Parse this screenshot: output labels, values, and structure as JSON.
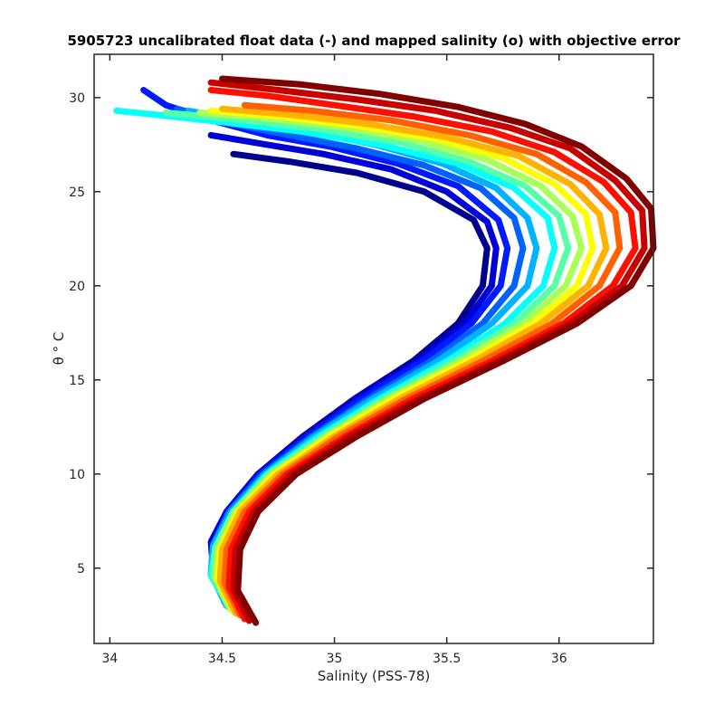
{
  "chart_data": {
    "type": "line",
    "title": "5905723 uncalibrated float data (-) and mapped salinity (o) with objective error",
    "xlabel": "Salinity (PSS-78)",
    "ylabel": "θ ° C",
    "xlim": [
      33.93,
      36.42
    ],
    "ylim": [
      1.0,
      32.3
    ],
    "xticks": [
      34,
      34.5,
      35,
      35.5,
      36
    ],
    "xtick_labels": [
      "34",
      "34.5",
      "35",
      "35.5",
      "36"
    ],
    "yticks": [
      5,
      10,
      15,
      20,
      25,
      30
    ],
    "ytick_labels": [
      "5",
      "10",
      "15",
      "20",
      "25",
      "30"
    ],
    "grid": false,
    "legend": "none",
    "colormap": "jet",
    "colormap_stops": [
      "#00008f",
      "#0000ff",
      "#0080ff",
      "#00ffff",
      "#80ff80",
      "#ffff00",
      "#ff8000",
      "#ff0000",
      "#800000"
    ],
    "series": [
      {
        "color_index": 0.0,
        "salinity": [
          34.52,
          34.47,
          34.46,
          34.52,
          34.66,
          34.86,
          35.09,
          35.35,
          35.55,
          35.66,
          35.68,
          35.62,
          35.4,
          35.1,
          34.8,
          34.55
        ],
        "theta": [
          3.3,
          4.8,
          6.5,
          8.0,
          10.0,
          12.0,
          14.0,
          16.0,
          18.0,
          20.0,
          22.0,
          23.5,
          25.0,
          26.0,
          26.6,
          27.0
        ]
      },
      {
        "color_index": 0.08,
        "salinity": [
          34.51,
          34.46,
          34.45,
          34.52,
          34.66,
          34.87,
          35.1,
          35.37,
          35.58,
          35.7,
          35.72,
          35.68,
          35.5,
          35.25,
          34.95,
          34.65,
          34.45
        ],
        "theta": [
          3.2,
          4.9,
          6.4,
          8.0,
          10.0,
          12.0,
          14.0,
          16.0,
          18.0,
          20.0,
          22.0,
          23.4,
          25.0,
          26.2,
          27.0,
          27.6,
          28.0
        ]
      },
      {
        "color_index": 0.15,
        "salinity": [
          34.52,
          34.46,
          34.46,
          34.53,
          34.67,
          34.88,
          35.12,
          35.39,
          35.61,
          35.74,
          35.77,
          35.73,
          35.55,
          35.28,
          34.98,
          34.7,
          34.45,
          34.25,
          34.15
        ],
        "theta": [
          3.1,
          4.8,
          6.3,
          8.0,
          10.0,
          12.0,
          14.0,
          16.0,
          18.0,
          20.0,
          22.0,
          23.5,
          25.3,
          26.5,
          27.4,
          28.0,
          28.8,
          29.6,
          30.4
        ]
      },
      {
        "color_index": 0.22,
        "salinity": [
          34.52,
          34.45,
          34.46,
          34.53,
          34.68,
          34.9,
          35.15,
          35.43,
          35.66,
          35.8,
          35.84,
          35.8,
          35.65,
          35.4,
          35.1,
          34.8,
          34.55,
          34.3
        ],
        "theta": [
          3.0,
          4.7,
          6.2,
          8.0,
          10.0,
          12.0,
          14.0,
          16.0,
          18.0,
          20.0,
          22.0,
          23.6,
          25.2,
          26.4,
          27.3,
          28.0,
          28.6,
          29.4
        ]
      },
      {
        "color_index": 0.3,
        "salinity": [
          34.52,
          34.45,
          34.46,
          34.54,
          34.69,
          34.91,
          35.17,
          35.46,
          35.7,
          35.86,
          35.9,
          35.86,
          35.72,
          35.48,
          35.18,
          34.88,
          34.6,
          34.35
        ],
        "theta": [
          3.0,
          4.7,
          6.2,
          8.0,
          10.0,
          12.0,
          14.0,
          16.0,
          18.0,
          20.0,
          22.0,
          23.6,
          25.2,
          26.5,
          27.5,
          28.2,
          28.8,
          29.3
        ]
      },
      {
        "color_index": 0.38,
        "salinity": [
          34.53,
          34.45,
          34.47,
          34.55,
          34.7,
          34.93,
          35.2,
          35.5,
          35.76,
          35.93,
          35.98,
          35.95,
          35.8,
          35.55,
          35.2,
          34.85,
          34.5,
          34.2,
          34.03
        ],
        "theta": [
          3.0,
          4.6,
          6.1,
          8.0,
          10.0,
          12.0,
          14.0,
          16.0,
          18.0,
          20.0,
          22.0,
          23.6,
          25.2,
          26.5,
          27.5,
          28.2,
          28.7,
          29.1,
          29.3
        ]
      },
      {
        "color_index": 0.46,
        "salinity": [
          34.53,
          34.46,
          34.47,
          34.55,
          34.71,
          34.95,
          35.22,
          35.53,
          35.8,
          35.98,
          36.04,
          36.0,
          35.85,
          35.6,
          35.3,
          34.95,
          34.6,
          34.25
        ],
        "theta": [
          2.9,
          4.6,
          6.1,
          8.0,
          10.0,
          12.0,
          14.0,
          16.0,
          18.0,
          20.0,
          22.0,
          23.7,
          25.3,
          26.6,
          27.6,
          28.3,
          28.8,
          29.2
        ]
      },
      {
        "color_index": 0.54,
        "salinity": [
          34.54,
          34.47,
          34.48,
          34.56,
          34.72,
          34.96,
          35.24,
          35.56,
          35.84,
          36.03,
          36.1,
          36.06,
          35.92,
          35.68,
          35.38,
          35.05,
          34.7,
          34.4
        ],
        "theta": [
          2.8,
          4.5,
          6.0,
          8.0,
          10.0,
          12.0,
          14.0,
          16.0,
          18.0,
          20.0,
          22.0,
          23.7,
          25.3,
          26.7,
          27.7,
          28.4,
          28.9,
          29.2
        ]
      },
      {
        "color_index": 0.62,
        "salinity": [
          34.55,
          34.48,
          34.49,
          34.57,
          34.73,
          34.98,
          35.26,
          35.59,
          35.88,
          36.08,
          36.15,
          36.12,
          35.98,
          35.75,
          35.45,
          35.1,
          34.75,
          34.45
        ],
        "theta": [
          2.7,
          4.4,
          6.0,
          8.0,
          10.0,
          12.0,
          14.0,
          16.0,
          18.0,
          20.0,
          22.0,
          23.8,
          25.4,
          26.8,
          27.8,
          28.5,
          29.0,
          29.3
        ]
      },
      {
        "color_index": 0.7,
        "salinity": [
          34.56,
          34.49,
          34.5,
          34.58,
          34.75,
          35.0,
          35.29,
          35.62,
          35.92,
          36.13,
          36.21,
          36.18,
          36.05,
          35.82,
          35.5,
          35.15,
          34.8,
          34.5
        ],
        "theta": [
          2.6,
          4.3,
          6.0,
          8.0,
          10.0,
          12.0,
          14.0,
          16.0,
          18.0,
          20.0,
          22.0,
          23.8,
          25.4,
          26.9,
          27.9,
          28.6,
          29.1,
          29.4
        ]
      },
      {
        "color_index": 0.78,
        "salinity": [
          34.58,
          34.51,
          34.52,
          34.6,
          34.77,
          35.02,
          35.32,
          35.66,
          35.97,
          36.18,
          36.27,
          36.25,
          36.12,
          35.9,
          35.6,
          35.25,
          34.9,
          34.6
        ],
        "theta": [
          2.5,
          4.2,
          6.0,
          8.0,
          10.0,
          12.0,
          14.0,
          16.0,
          18.0,
          20.0,
          22.0,
          23.9,
          25.5,
          27.0,
          28.0,
          28.8,
          29.3,
          29.6
        ]
      },
      {
        "color_index": 0.86,
        "salinity": [
          34.6,
          34.53,
          34.54,
          34.62,
          34.79,
          35.05,
          35.35,
          35.7,
          36.02,
          36.24,
          36.34,
          36.32,
          36.2,
          35.98,
          35.7,
          35.35,
          35.0,
          34.7,
          34.45
        ],
        "theta": [
          2.3,
          4.0,
          6.0,
          8.0,
          10.0,
          12.0,
          14.0,
          16.0,
          18.0,
          20.0,
          22.0,
          23.9,
          25.5,
          27.1,
          28.2,
          29.0,
          29.6,
          30.1,
          30.4
        ]
      },
      {
        "color_index": 0.93,
        "salinity": [
          34.62,
          34.55,
          34.56,
          34.64,
          34.81,
          35.07,
          35.38,
          35.73,
          36.05,
          36.28,
          36.38,
          36.37,
          36.25,
          36.05,
          35.78,
          35.45,
          35.1,
          34.75,
          34.45
        ],
        "theta": [
          2.2,
          3.9,
          6.0,
          8.0,
          10.0,
          12.0,
          14.0,
          16.0,
          18.0,
          20.0,
          22.0,
          24.0,
          25.6,
          27.3,
          28.4,
          29.3,
          29.9,
          30.4,
          30.8
        ]
      },
      {
        "color_index": 1.0,
        "salinity": [
          34.65,
          34.57,
          34.58,
          34.66,
          34.83,
          35.1,
          35.4,
          35.75,
          36.08,
          36.32,
          36.42,
          36.41,
          36.3,
          36.1,
          35.85,
          35.55,
          35.2,
          34.85,
          34.5
        ],
        "theta": [
          2.1,
          3.8,
          6.0,
          8.0,
          10.0,
          12.0,
          14.0,
          16.0,
          18.0,
          20.0,
          22.0,
          24.1,
          25.7,
          27.4,
          28.6,
          29.5,
          30.2,
          30.7,
          31.0
        ]
      }
    ]
  }
}
